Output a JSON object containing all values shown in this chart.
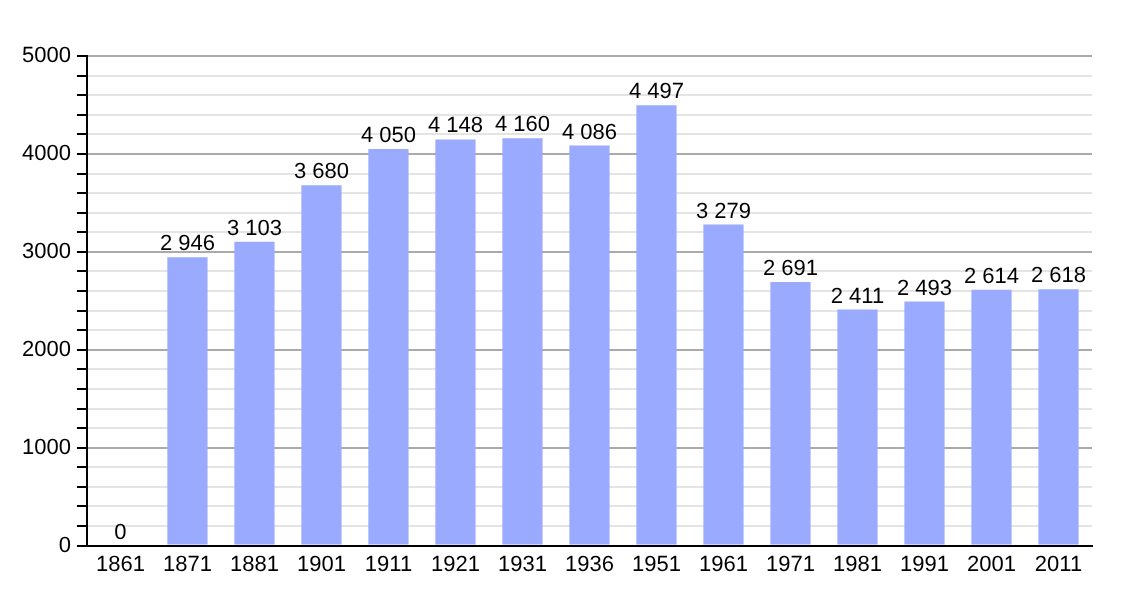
{
  "chart_data": {
    "type": "bar",
    "categories": [
      "1861",
      "1871",
      "1881",
      "1901",
      "1911",
      "1921",
      "1931",
      "1936",
      "1951",
      "1961",
      "1971",
      "1981",
      "1991",
      "2001",
      "2011"
    ],
    "values": [
      0,
      2946,
      3103,
      3680,
      4050,
      4148,
      4160,
      4086,
      4497,
      3279,
      2691,
      2411,
      2493,
      2614,
      2618
    ],
    "value_labels": [
      "0",
      "2 946",
      "3 103",
      "3 680",
      "4 050",
      "4 148",
      "4 160",
      "4 086",
      "4 497",
      "3 279",
      "2 691",
      "2 411",
      "2 493",
      "2 614",
      "2 618"
    ],
    "color": "#99aaff",
    "ylim": [
      0,
      5000
    ],
    "yticks": [
      0,
      {
        "value": 200,
        "label": null
      },
      {
        "value": 400,
        "label": null
      },
      {
        "value": 600,
        "label": null
      },
      {
        "value": 800,
        "label": null
      },
      1000,
      {
        "value": 1200,
        "label": null
      },
      {
        "value": 1400,
        "label": null
      },
      {
        "value": 1600,
        "label": null
      },
      {
        "value": 1800,
        "label": null
      },
      2000,
      {
        "value": 2200,
        "label": null
      },
      {
        "value": 2400,
        "label": null
      },
      {
        "value": 2600,
        "label": null
      },
      {
        "value": 2800,
        "label": null
      },
      3000,
      {
        "value": 3200,
        "label": null
      },
      {
        "value": 3400,
        "label": null
      },
      {
        "value": 3600,
        "label": null
      },
      {
        "value": 3800,
        "label": null
      },
      4000,
      {
        "value": 4200,
        "label": null
      },
      {
        "value": 4400,
        "label": null
      },
      {
        "value": 4600,
        "label": null
      },
      {
        "value": 4800,
        "label": null
      },
      5000
    ],
    "grid": "y",
    "legend": false
  }
}
